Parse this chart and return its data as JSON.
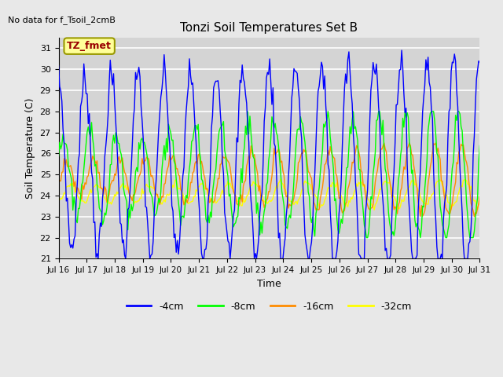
{
  "title": "Tonzi Soil Temperatures Set B",
  "ylabel": "Soil Temperature (C)",
  "xlabel": "Time",
  "no_data_text": "No data for f_Tsoil_2cmB",
  "annotation_text": "TZ_fmet",
  "ylim": [
    21.0,
    31.5
  ],
  "yticks": [
    21.0,
    22.0,
    23.0,
    24.0,
    25.0,
    26.0,
    27.0,
    28.0,
    29.0,
    30.0,
    31.0
  ],
  "xtick_labels": [
    "Jul 16",
    "Jul 17",
    "Jul 18",
    "Jul 19",
    "Jul 20",
    "Jul 21",
    "Jul 22",
    "Jul 23",
    "Jul 24",
    "Jul 25",
    "Jul 26",
    "Jul 27",
    "Jul 28",
    "Jul 29",
    "Jul 30",
    "Jul 31"
  ],
  "colors": {
    "4cm": "#0000ff",
    "8cm": "#00ff00",
    "16cm": "#ff8c00",
    "32cm": "#ffff00"
  },
  "legend_labels": [
    "-4cm",
    "-8cm",
    "-16cm",
    "-32cm"
  ],
  "background_color": "#e8e8e8",
  "plot_bg_color": "#d4d4d4",
  "grid_color": "#ffffff",
  "annotation_bg": "#ffff99",
  "annotation_fg": "#990000",
  "annotation_border": "#999900",
  "figsize": [
    6.4,
    4.8
  ],
  "dpi": 100
}
